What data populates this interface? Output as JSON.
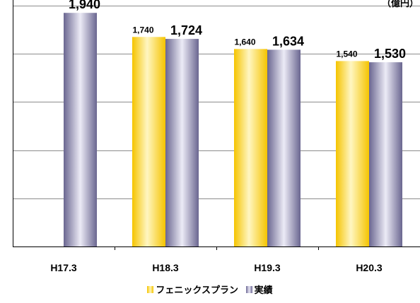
{
  "chart_data": {
    "type": "bar",
    "unit_label": "（億円）",
    "categories": [
      "H17.3",
      "H18.3",
      "H19.3",
      "H20.3"
    ],
    "ylim": [
      0,
      2000
    ],
    "grid": true,
    "legend_position": "bottom",
    "series": [
      {
        "name": "フェニックスプラン",
        "values": [
          null,
          1740,
          1640,
          1540
        ],
        "labels": [
          "",
          "1,740",
          "1,640",
          "1,540"
        ],
        "color": "#f5c400"
      },
      {
        "name": "実績",
        "values": [
          1940,
          1724,
          1634,
          1530
        ],
        "labels": [
          "1,940",
          "1,724",
          "1,634",
          "1,530"
        ],
        "color": "#6e6a96"
      }
    ]
  }
}
